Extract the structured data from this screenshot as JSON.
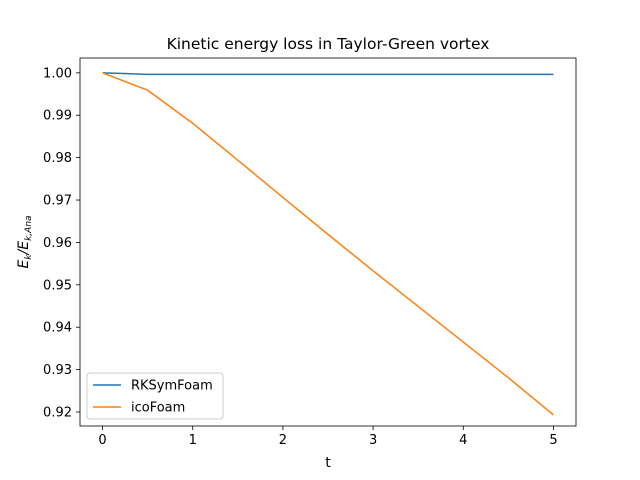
{
  "chart_data": {
    "type": "line",
    "title": "Kinetic energy loss in Taylor-Green vortex",
    "xlabel": "t",
    "ylabel": {
      "base": "E",
      "sub1": "k",
      "sep": "/E",
      "sub2": "k,Ana"
    },
    "xlim": [
      -0.25,
      5.25
    ],
    "ylim": [
      0.9167,
      1.0035
    ],
    "xticks": [
      0,
      1,
      2,
      3,
      4,
      5
    ],
    "xtick_labels": [
      "0",
      "1",
      "2",
      "3",
      "4",
      "5"
    ],
    "yticks": [
      0.92,
      0.93,
      0.94,
      0.95,
      0.96,
      0.97,
      0.98,
      0.99,
      1.0
    ],
    "ytick_labels": [
      "0.92",
      "0.93",
      "0.94",
      "0.95",
      "0.96",
      "0.97",
      "0.98",
      "0.99",
      "1.00"
    ],
    "grid": false,
    "legend_position": "lower-left",
    "series": [
      {
        "name": "RKSymFoam",
        "color": "#1f77b4",
        "x": [
          0,
          0.5,
          1,
          1.5,
          2,
          2.5,
          3,
          3.5,
          4,
          4.5,
          5
        ],
        "y": [
          1.0,
          0.99965,
          0.99965,
          0.99965,
          0.99965,
          0.99965,
          0.99965,
          0.99965,
          0.99965,
          0.99965,
          0.99965
        ]
      },
      {
        "name": "icoFoam",
        "color": "#ff7f0e",
        "x": [
          0,
          0.5,
          1,
          1.5,
          2,
          2.5,
          3,
          3.5,
          4,
          4.5,
          5
        ],
        "y": [
          1.0,
          0.9959,
          0.9881,
          0.9794,
          0.9706,
          0.9619,
          0.9533,
          0.9449,
          0.9365,
          0.9281,
          0.9193
        ]
      }
    ]
  }
}
